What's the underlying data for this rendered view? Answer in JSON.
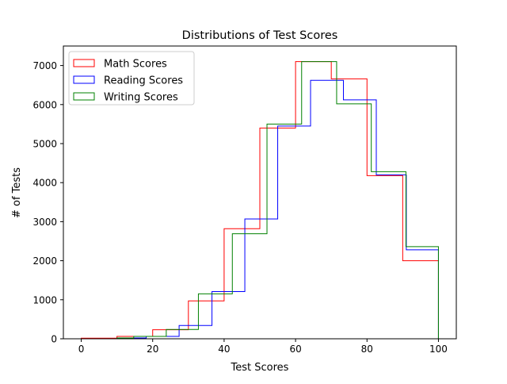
{
  "chart_data": {
    "type": "histogram-step",
    "title": "Distributions of Test Scores",
    "xlabel": "Test Scores",
    "ylabel": "# of Tests",
    "xlim": [
      -5,
      105
    ],
    "ylim": [
      0,
      7500
    ],
    "xticks": [
      0,
      20,
      40,
      60,
      80,
      100
    ],
    "yticks": [
      0,
      1000,
      2000,
      3000,
      4000,
      5000,
      6000,
      7000
    ],
    "grid": false,
    "legend": "top-left",
    "series": [
      {
        "name": "Math Scores",
        "color": "#ff0000",
        "bins": [
          0,
          10,
          20,
          30,
          40,
          50,
          60,
          70,
          80,
          90,
          100
        ],
        "values": [
          15,
          60,
          230,
          970,
          2820,
          5400,
          7100,
          6660,
          4180,
          2000
        ]
      },
      {
        "name": "Reading Scores",
        "color": "#0000ff",
        "bins": [
          10,
          18.2,
          27.4,
          36.6,
          45.8,
          55,
          64.2,
          73.4,
          82.6,
          91,
          100
        ],
        "values": [
          20,
          60,
          340,
          1210,
          3070,
          5450,
          6620,
          6120,
          4200,
          2280
        ]
      },
      {
        "name": "Writing Scores",
        "color": "#008000",
        "bins": [
          10,
          14.7,
          23.8,
          32.8,
          42.3,
          52,
          61.7,
          71.5,
          81.2,
          90.9,
          100
        ],
        "values": [
          20,
          60,
          240,
          1150,
          2690,
          5500,
          7100,
          6020,
          4280,
          2360
        ]
      }
    ]
  }
}
